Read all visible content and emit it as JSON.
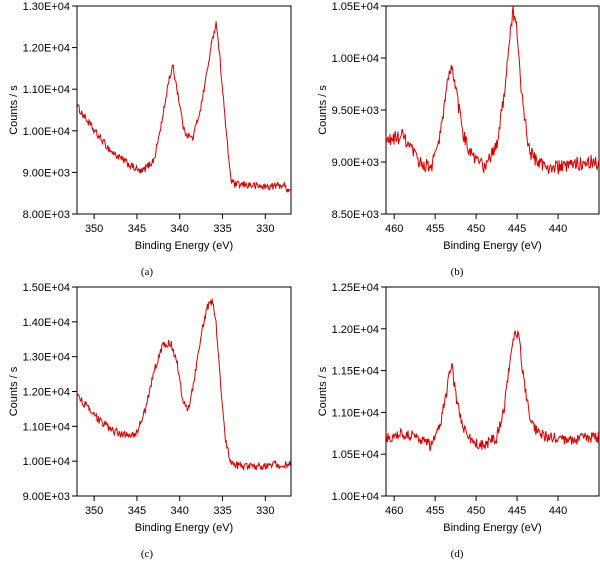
{
  "chart_data": [
    {
      "type": "line",
      "caption": "(a)",
      "xlabel": "Binding Energy (eV)",
      "ylabel": "Counts / s",
      "xlim": [
        352,
        327
      ],
      "ylim": [
        8000,
        13000
      ],
      "x_ticks": [
        350,
        345,
        340,
        335,
        330
      ],
      "x_tick_labels": [
        "350",
        "345",
        "340",
        "335",
        "330"
      ],
      "y_ticks": [
        8000,
        9000,
        10000,
        11000,
        12000,
        13000
      ],
      "y_tick_labels": [
        "8.00E+03",
        "9.00E+03",
        "1.00E+04",
        "1.10E+04",
        "1.20E+04",
        "1.30E+04"
      ],
      "grid": false,
      "series": [
        {
          "color": "#dd0000",
          "noise": 90,
          "x": [
            352,
            350,
            348,
            346,
            344.5,
            343,
            342,
            341.3,
            340.8,
            340.3,
            339.5,
            338.5,
            337.5,
            336.5,
            336,
            335.7,
            335.2,
            334.5,
            334,
            333.5,
            332,
            330,
            328,
            327
          ],
          "y": [
            10600,
            10000,
            9500,
            9200,
            9000,
            9300,
            10300,
            11200,
            11550,
            11000,
            10000,
            9800,
            10600,
            11800,
            12400,
            12600,
            11500,
            9800,
            8800,
            8700,
            8700,
            8650,
            8700,
            8550
          ]
        }
      ]
    },
    {
      "type": "line",
      "caption": "(b)",
      "xlabel": "Binding Energy (eV)",
      "ylabel": "Counts / s",
      "xlim": [
        461,
        435
      ],
      "ylim": [
        8500,
        10500
      ],
      "x_ticks": [
        460,
        455,
        450,
        445,
        440
      ],
      "x_tick_labels": [
        "460",
        "455",
        "450",
        "445",
        "440"
      ],
      "y_ticks": [
        8500,
        9000,
        9500,
        10000,
        10500
      ],
      "y_tick_labels": [
        "8.50E+03",
        "9.00E+03",
        "9.50E+03",
        "1.00E+04",
        "1.05E+04"
      ],
      "grid": false,
      "series": [
        {
          "color": "#dd0000",
          "noise": 70,
          "x": [
            461,
            459,
            457,
            455.5,
            454.5,
            453.6,
            453,
            452.3,
            451.5,
            450.5,
            449,
            447.5,
            446.5,
            446,
            445.5,
            445,
            444.5,
            443.5,
            442.5,
            441,
            439,
            437,
            435
          ],
          "y": [
            9200,
            9250,
            9000,
            8950,
            9200,
            9700,
            9950,
            9600,
            9250,
            9050,
            8950,
            9150,
            9700,
            10150,
            10450,
            10250,
            9700,
            9100,
            9000,
            8950,
            8950,
            9000,
            9000
          ]
        }
      ]
    },
    {
      "type": "line",
      "caption": "(c)",
      "xlabel": "Binding Energy (eV)",
      "ylabel": "Counts / s",
      "xlim": [
        352,
        327
      ],
      "ylim": [
        9000,
        15000
      ],
      "x_ticks": [
        350,
        345,
        340,
        335,
        330
      ],
      "x_tick_labels": [
        "350",
        "345",
        "340",
        "335",
        "330"
      ],
      "y_ticks": [
        9000,
        10000,
        11000,
        12000,
        13000,
        14000,
        15000
      ],
      "y_tick_labels": [
        "9.00E+03",
        "1.00E+04",
        "1.10E+04",
        "1.20E+04",
        "1.30E+04",
        "1.40E+04",
        "1.50E+04"
      ],
      "grid": false,
      "series": [
        {
          "color": "#dd0000",
          "noise": 110,
          "x": [
            352,
            350,
            348,
            346.5,
            345,
            344,
            343,
            342,
            341,
            340.3,
            339.6,
            339,
            338.4,
            337.6,
            336.8,
            336.2,
            335.8,
            335.3,
            334.6,
            334,
            333,
            331,
            329,
            327
          ],
          "y": [
            11900,
            11300,
            10900,
            10750,
            10800,
            11500,
            12600,
            13300,
            13400,
            12800,
            11700,
            11500,
            12200,
            13500,
            14400,
            14600,
            14100,
            12500,
            10500,
            9950,
            9850,
            9850,
            9900,
            9900
          ]
        }
      ]
    },
    {
      "type": "line",
      "caption": "(d)",
      "xlabel": "Binding Energy (eV)",
      "ylabel": "Counts / s",
      "xlim": [
        461,
        435
      ],
      "ylim": [
        10000,
        12500
      ],
      "x_ticks": [
        460,
        455,
        450,
        445,
        440
      ],
      "x_tick_labels": [
        "460",
        "455",
        "450",
        "445",
        "440"
      ],
      "y_ticks": [
        10000,
        10500,
        11000,
        11500,
        12000,
        12500
      ],
      "y_tick_labels": [
        "1.00E+04",
        "1.05E+04",
        "1.10E+04",
        "1.15E+04",
        "1.20E+04",
        "1.25E+04"
      ],
      "grid": false,
      "series": [
        {
          "color": "#dd0000",
          "noise": 70,
          "x": [
            461,
            459,
            457,
            455.5,
            454.5,
            453.5,
            453,
            452.5,
            451.5,
            450.5,
            449,
            447.5,
            446.5,
            445.8,
            445.2,
            444.8,
            444.2,
            443.3,
            442.5,
            441,
            439,
            437,
            435
          ],
          "y": [
            10700,
            10750,
            10700,
            10600,
            10800,
            11300,
            11600,
            11200,
            10800,
            10650,
            10600,
            10700,
            11100,
            11700,
            12000,
            11900,
            11400,
            10900,
            10750,
            10700,
            10650,
            10700,
            10700
          ]
        }
      ]
    }
  ]
}
